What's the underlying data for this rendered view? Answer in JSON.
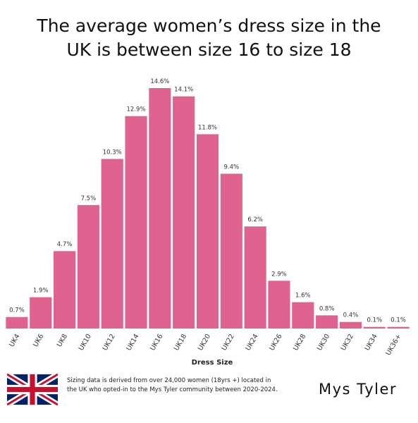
{
  "chart_data": {
    "type": "bar",
    "title": "The average women’s dress size in the UK is between size 16 to size 18",
    "categories": [
      "UK4",
      "UK6",
      "UK8",
      "UK10",
      "UK12",
      "UK14",
      "UK16",
      "UK18",
      "UK20",
      "UK22",
      "UK24",
      "UK26",
      "UK28",
      "UK30",
      "UK32",
      "UK34",
      "UK36+"
    ],
    "values": [
      0.7,
      1.9,
      4.7,
      7.5,
      10.3,
      12.9,
      14.6,
      14.1,
      11.8,
      9.4,
      6.2,
      2.9,
      1.6,
      0.8,
      0.4,
      0.1,
      0.1
    ],
    "value_labels": [
      "0.7%",
      "1.9%",
      "4.7%",
      "7.5%",
      "10.3%",
      "12.9%",
      "14.6%",
      "14.1%",
      "11.8%",
      "9.4%",
      "6.2%",
      "2.9%",
      "1.6%",
      "0.8%",
      "0.4%",
      "0.1%",
      "0.1%"
    ],
    "color": "#e0628f",
    "x_label": "Dress Size"
  },
  "footnote": "Sizing data is derived from over 24,000 women (18yrs +)  located in the UK who opted-in to the Mys Tyler community between 2020-2024.",
  "brand": "Mys Tyler"
}
